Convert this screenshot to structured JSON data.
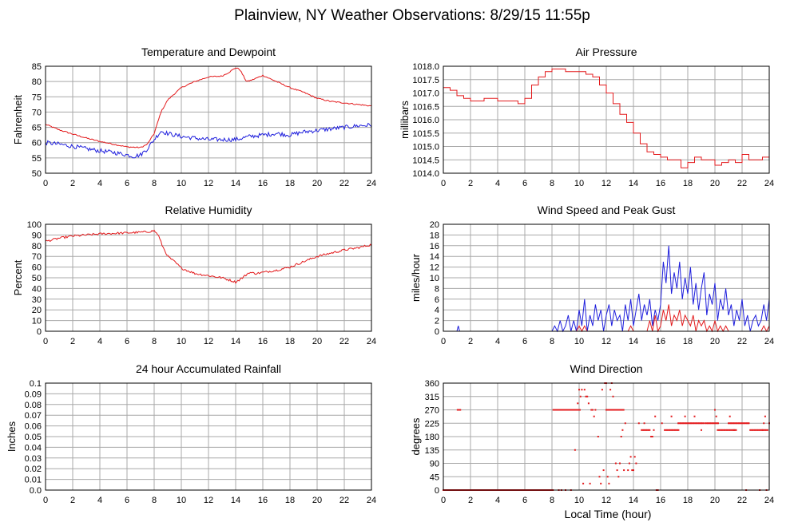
{
  "page": {
    "title": "Plainview, NY Weather Observations: 8/29/15 11:55p",
    "shared_xlabel": "Local Time (hour)"
  },
  "colors": {
    "red": "#e31a1c",
    "blue": "#1f1fdd",
    "grid": "#a8a8a8",
    "frame": "#000000"
  },
  "chart_data": [
    {
      "id": "temp",
      "type": "line",
      "title": "Temperature and Dewpoint",
      "xlabel": "",
      "ylabel": "Fahrenheit",
      "xlim": [
        0,
        24
      ],
      "ylim": [
        50,
        85
      ],
      "xticks": [
        0,
        2,
        4,
        6,
        8,
        10,
        12,
        14,
        16,
        18,
        20,
        22,
        24
      ],
      "yticks": [
        50,
        55,
        60,
        65,
        70,
        75,
        80,
        85
      ],
      "ytick_labels": [
        "50",
        "55",
        "60",
        "65",
        "70",
        "75",
        "80",
        "85"
      ],
      "grid": true,
      "series": [
        {
          "color": "#e31a1c",
          "noise": 0.2,
          "x": [
            0,
            1,
            2,
            3,
            4,
            5,
            6,
            7,
            7.5,
            8,
            8.5,
            9,
            10,
            11,
            12,
            13,
            13.5,
            14,
            14.3,
            14.8,
            15.2,
            16,
            17,
            18,
            19,
            20,
            21,
            22,
            23,
            24
          ],
          "y": [
            66,
            64.2,
            62.8,
            61.5,
            60.4,
            59.5,
            58.6,
            58.4,
            59.5,
            63,
            70,
            74,
            78,
            80,
            81.5,
            81.8,
            83,
            84.5,
            84,
            80,
            80.5,
            82,
            80,
            78,
            76.5,
            74.5,
            73.5,
            73,
            72.5,
            72
          ]
        },
        {
          "color": "#1f1fdd",
          "noise": 0.7,
          "x": [
            0,
            1,
            2,
            3,
            4,
            5,
            6,
            6.5,
            7,
            7.5,
            8,
            8.5,
            9,
            10,
            11,
            12,
            13,
            14,
            15,
            16,
            17,
            18,
            19,
            20,
            21,
            22,
            23,
            24
          ],
          "y": [
            60,
            59.5,
            58.8,
            58,
            57.3,
            56.8,
            56,
            55.5,
            56,
            58,
            61,
            63.8,
            63,
            62,
            61.5,
            61,
            61,
            61,
            62,
            62.5,
            63,
            62.5,
            63.5,
            64,
            64.5,
            65,
            65.5,
            65.8
          ]
        }
      ]
    },
    {
      "id": "pressure",
      "type": "line",
      "title": "Air Pressure",
      "xlabel": "",
      "ylabel": "millibars",
      "xlim": [
        0,
        24
      ],
      "ylim": [
        1014.0,
        1018.0
      ],
      "xticks": [
        0,
        2,
        4,
        6,
        8,
        10,
        12,
        14,
        16,
        18,
        20,
        22,
        24
      ],
      "yticks": [
        1014.0,
        1014.5,
        1015.0,
        1015.5,
        1016.0,
        1016.5,
        1017.0,
        1017.5,
        1018.0
      ],
      "ytick_labels": [
        "1014.0",
        "1014.5",
        "1015.0",
        "1015.5",
        "1016.0",
        "1016.5",
        "1017.0",
        "1017.5",
        "1018.0"
      ],
      "grid": true,
      "series": [
        {
          "color": "#e31a1c",
          "noise": 0.0,
          "step": true,
          "x": [
            0,
            0.5,
            1,
            1.5,
            2,
            3,
            4,
            5,
            5.5,
            6,
            6.5,
            7,
            7.5,
            8,
            8.5,
            9,
            9.5,
            10,
            10.5,
            11,
            11.5,
            12,
            12.5,
            13,
            13.5,
            14,
            14.5,
            15,
            15.5,
            16,
            16.5,
            17,
            17.5,
            18,
            18.5,
            19,
            19.5,
            20,
            20.5,
            21,
            21.5,
            22,
            22.5,
            23,
            23.5,
            24
          ],
          "y": [
            1017.2,
            1017.1,
            1016.9,
            1016.8,
            1016.7,
            1016.8,
            1016.7,
            1016.7,
            1016.6,
            1016.8,
            1017.3,
            1017.6,
            1017.8,
            1017.9,
            1017.9,
            1017.8,
            1017.8,
            1017.8,
            1017.7,
            1017.6,
            1017.3,
            1017.0,
            1016.6,
            1016.2,
            1015.9,
            1015.5,
            1015.1,
            1014.8,
            1014.7,
            1014.6,
            1014.5,
            1014.5,
            1014.2,
            1014.4,
            1014.6,
            1014.5,
            1014.5,
            1014.3,
            1014.4,
            1014.5,
            1014.4,
            1014.7,
            1014.5,
            1014.5,
            1014.6,
            1014.4
          ]
        }
      ]
    },
    {
      "id": "humidity",
      "type": "line",
      "title": "Relative Humidity",
      "xlabel": "",
      "ylabel": "Percent",
      "xlim": [
        0,
        24
      ],
      "ylim": [
        0,
        100
      ],
      "xticks": [
        0,
        2,
        4,
        6,
        8,
        10,
        12,
        14,
        16,
        18,
        20,
        22,
        24
      ],
      "yticks": [
        0,
        10,
        20,
        30,
        40,
        50,
        60,
        70,
        80,
        90,
        100
      ],
      "ytick_labels": [
        "0",
        "10",
        "20",
        "30",
        "40",
        "50",
        "60",
        "70",
        "80",
        "90",
        "100"
      ],
      "grid": true,
      "series": [
        {
          "color": "#e31a1c",
          "noise": 1.0,
          "x": [
            0,
            1,
            2,
            3,
            4,
            5,
            6,
            7,
            7.5,
            8,
            8.3,
            8.6,
            9,
            9.5,
            10,
            11,
            12,
            13,
            13.5,
            14,
            14.5,
            15,
            15.5,
            16,
            17,
            18,
            19,
            20,
            21,
            22,
            23,
            24
          ],
          "y": [
            84,
            87,
            89,
            90,
            91,
            91.5,
            92,
            92.5,
            93,
            94,
            90,
            80,
            70,
            65,
            59,
            54,
            52,
            50,
            48,
            46,
            50,
            55,
            54,
            55,
            57,
            60,
            65,
            70,
            73,
            76,
            78,
            81
          ]
        }
      ]
    },
    {
      "id": "wind",
      "type": "line",
      "title": "Wind Speed and Peak Gust",
      "xlabel": "",
      "ylabel": "miles/hour",
      "xlim": [
        0,
        24
      ],
      "ylim": [
        0,
        20
      ],
      "xticks": [
        0,
        2,
        4,
        6,
        8,
        10,
        12,
        14,
        16,
        18,
        20,
        22,
        24
      ],
      "yticks": [
        0,
        2,
        4,
        6,
        8,
        10,
        12,
        14,
        16,
        18,
        20
      ],
      "ytick_labels": [
        "0",
        "2",
        "4",
        "6",
        "8",
        "10",
        "12",
        "14",
        "16",
        "18",
        "20"
      ],
      "grid": true,
      "series": [
        {
          "color": "#1f1fdd",
          "noise": 0.0,
          "x": [
            0,
            1,
            1.1,
            1.2,
            1.3,
            8,
            8.2,
            8.4,
            8.6,
            8.8,
            9,
            9.2,
            9.4,
            9.6,
            9.8,
            10,
            10.2,
            10.4,
            10.6,
            10.8,
            11,
            11.2,
            11.4,
            11.6,
            11.8,
            12,
            12.2,
            12.4,
            12.6,
            12.8,
            13,
            13.2,
            13.4,
            13.6,
            13.8,
            14,
            14.2,
            14.4,
            14.6,
            14.8,
            15,
            15.2,
            15.4,
            15.6,
            15.8,
            16,
            16.2,
            16.4,
            16.6,
            16.8,
            17,
            17.2,
            17.4,
            17.6,
            17.8,
            18,
            18.2,
            18.4,
            18.6,
            18.8,
            19,
            19.2,
            19.4,
            19.6,
            19.8,
            20,
            20.2,
            20.4,
            20.6,
            20.8,
            21,
            21.2,
            21.4,
            21.6,
            21.8,
            22,
            22.2,
            22.4,
            22.6,
            22.8,
            23,
            23.2,
            23.4,
            23.6,
            23.8,
            24
          ],
          "y": [
            0,
            0,
            1,
            0,
            0,
            0,
            1,
            0,
            2,
            0,
            1,
            3,
            0,
            2,
            0,
            4,
            1,
            6,
            0,
            3,
            1,
            5,
            2,
            4,
            0,
            3,
            5,
            1,
            4,
            2,
            3,
            0,
            5,
            2,
            6,
            1,
            4,
            7,
            2,
            5,
            3,
            6,
            1,
            4,
            2,
            5,
            13,
            9,
            16,
            7,
            11,
            8,
            13,
            6,
            10,
            7,
            12,
            5,
            9,
            4,
            8,
            11,
            3,
            7,
            5,
            9,
            2,
            6,
            4,
            8,
            3,
            5,
            1,
            4,
            2,
            6,
            1,
            3,
            0,
            2,
            3,
            1,
            2,
            5,
            2,
            6
          ]
        },
        {
          "color": "#e31a1c",
          "noise": 0.0,
          "x": [
            0,
            9.8,
            10,
            10.2,
            10.4,
            10.6,
            11,
            13.6,
            13.8,
            14,
            14.2,
            15,
            15.2,
            15.4,
            15.6,
            15.8,
            16,
            16.2,
            16.4,
            16.6,
            16.8,
            17,
            17.2,
            17.4,
            17.6,
            17.8,
            18,
            18.2,
            18.4,
            18.6,
            18.8,
            19,
            19.2,
            19.4,
            19.6,
            19.8,
            20,
            20.2,
            20.4,
            20.6,
            20.8,
            21,
            21.2,
            23.4,
            23.6,
            23.8,
            24
          ],
          "y": [
            0,
            0,
            1,
            0,
            1,
            0,
            0,
            0,
            1,
            0,
            0,
            0,
            2,
            0,
            3,
            0,
            1,
            4,
            2,
            5,
            1,
            3,
            2,
            4,
            1,
            3,
            2,
            1,
            3,
            0,
            2,
            1,
            2,
            0,
            1,
            0,
            2,
            0,
            1,
            0,
            1,
            0,
            0,
            0,
            1,
            0,
            1
          ]
        }
      ]
    },
    {
      "id": "rain",
      "type": "line",
      "title": "24 hour Accumulated Rainfall",
      "xlabel": "",
      "ylabel": "Inches",
      "xlim": [
        0,
        24
      ],
      "ylim": [
        0,
        0.1
      ],
      "xticks": [
        0,
        2,
        4,
        6,
        8,
        10,
        12,
        14,
        16,
        18,
        20,
        22,
        24
      ],
      "yticks": [
        0,
        0.01,
        0.02,
        0.03,
        0.04,
        0.05,
        0.06,
        0.07,
        0.08,
        0.09,
        0.1
      ],
      "ytick_labels": [
        "0.0",
        "0.01",
        "0.02",
        "0.03",
        "0.04",
        "0.05",
        "0.06",
        "0.07",
        "0.08",
        "0.09",
        "0.1"
      ],
      "grid": true,
      "series": [
        {
          "color": "#e31a1c",
          "noise": 0.0,
          "x": [
            0,
            24
          ],
          "y": [
            0,
            0
          ]
        }
      ]
    },
    {
      "id": "direction",
      "type": "scatter",
      "title": "Wind Direction",
      "xlabel": "Local Time (hour)",
      "ylabel": "degrees",
      "xlim": [
        0,
        24
      ],
      "ylim": [
        0,
        360
      ],
      "xticks": [
        0,
        2,
        4,
        6,
        8,
        10,
        12,
        14,
        16,
        18,
        20,
        22,
        24
      ],
      "yticks": [
        0,
        45,
        90,
        135,
        180,
        225,
        270,
        315,
        360
      ],
      "ytick_labels": [
        "0",
        "45",
        "90",
        "135",
        "180",
        "225",
        "270",
        "315",
        "360"
      ],
      "grid": true,
      "segments": [
        {
          "x0": 0,
          "x1": 8.1,
          "y": 0
        },
        {
          "x0": 8.1,
          "x1": 10.1,
          "y": 270
        },
        {
          "x0": 12.0,
          "x1": 13.3,
          "y": 270
        },
        {
          "x0": 14.6,
          "x1": 15.2,
          "y": 202
        },
        {
          "x0": 16.3,
          "x1": 17.4,
          "y": 202
        },
        {
          "x0": 17.3,
          "x1": 19.2,
          "y": 225
        },
        {
          "x0": 19.3,
          "x1": 20.3,
          "y": 225
        },
        {
          "x0": 20.2,
          "x1": 21.6,
          "y": 202
        },
        {
          "x0": 21.0,
          "x1": 22.5,
          "y": 225
        },
        {
          "x0": 22.6,
          "x1": 23.9,
          "y": 202
        }
      ],
      "points": [
        [
          1.05,
          270
        ],
        [
          1.15,
          270
        ],
        [
          1.25,
          270
        ],
        [
          8.5,
          0
        ],
        [
          8.7,
          0
        ],
        [
          9.0,
          0
        ],
        [
          9.4,
          0
        ],
        [
          9.7,
          135
        ],
        [
          9.9,
          292
        ],
        [
          10.0,
          338
        ],
        [
          10.1,
          315
        ],
        [
          10.2,
          338
        ],
        [
          10.3,
          22
        ],
        [
          10.4,
          338
        ],
        [
          10.5,
          315
        ],
        [
          10.6,
          315
        ],
        [
          10.7,
          292
        ],
        [
          10.8,
          22
        ],
        [
          10.9,
          270
        ],
        [
          11.0,
          270
        ],
        [
          11.1,
          248
        ],
        [
          11.2,
          270
        ],
        [
          11.4,
          180
        ],
        [
          11.5,
          45
        ],
        [
          11.6,
          22
        ],
        [
          11.7,
          338
        ],
        [
          11.8,
          67
        ],
        [
          11.9,
          360
        ],
        [
          12.0,
          360
        ],
        [
          12.1,
          45
        ],
        [
          12.2,
          22
        ],
        [
          12.3,
          338
        ],
        [
          12.4,
          360
        ],
        [
          12.5,
          315
        ],
        [
          12.7,
          90
        ],
        [
          12.8,
          67
        ],
        [
          12.9,
          45
        ],
        [
          13.0,
          90
        ],
        [
          13.1,
          180
        ],
        [
          13.2,
          202
        ],
        [
          13.3,
          67
        ],
        [
          13.4,
          225
        ],
        [
          13.6,
          67
        ],
        [
          13.7,
          90
        ],
        [
          13.8,
          112
        ],
        [
          13.9,
          67
        ],
        [
          14.0,
          67
        ],
        [
          14.1,
          112
        ],
        [
          14.2,
          90
        ],
        [
          14.4,
          225
        ],
        [
          14.8,
          225
        ],
        [
          15.3,
          180
        ],
        [
          15.4,
          180
        ],
        [
          15.5,
          202
        ],
        [
          15.6,
          248
        ],
        [
          15.7,
          0
        ],
        [
          15.8,
          0
        ],
        [
          16.1,
          225
        ],
        [
          16.8,
          248
        ],
        [
          17.8,
          248
        ],
        [
          18.5,
          248
        ],
        [
          19.0,
          202
        ],
        [
          20.0,
          270
        ],
        [
          20.1,
          248
        ],
        [
          21.1,
          248
        ],
        [
          21.4,
          202
        ],
        [
          22.3,
          0
        ],
        [
          22.5,
          225
        ],
        [
          23.3,
          0
        ],
        [
          23.5,
          202
        ],
        [
          23.6,
          225
        ],
        [
          23.7,
          248
        ],
        [
          23.8,
          0
        ],
        [
          24.0,
          225
        ]
      ]
    }
  ]
}
